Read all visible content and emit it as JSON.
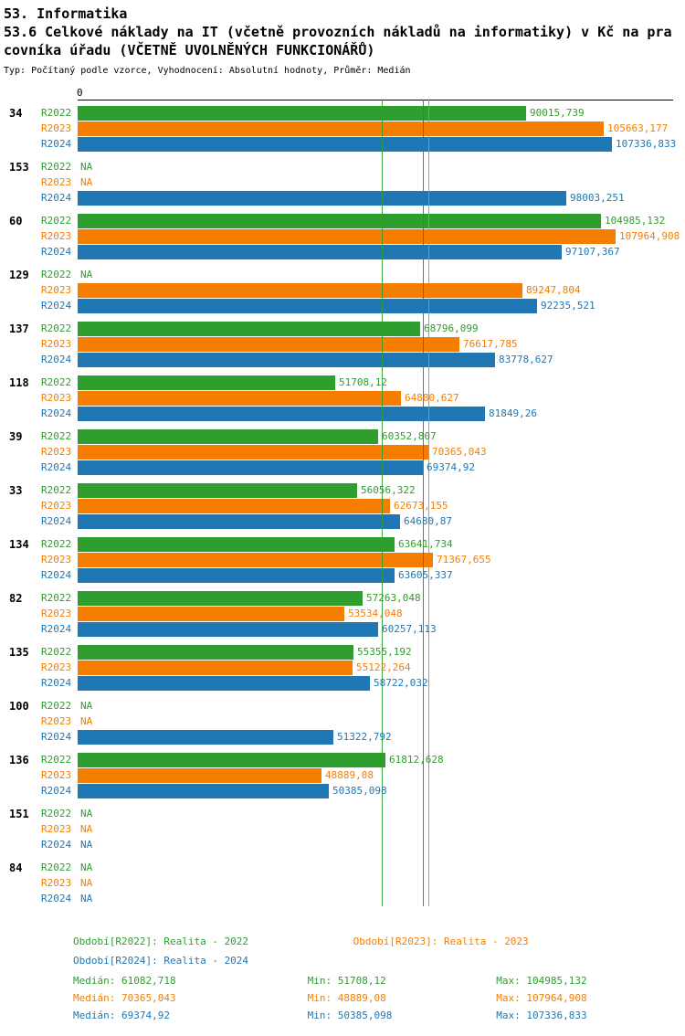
{
  "title": {
    "line1": "53. Informatika",
    "line2": "53.6 Celkové náklady na IT (včetně provozních nákladů na informatiky) v Kč na pra",
    "line3": "covníka úřadu (VČETNĚ UVOLNĚNÝCH FUNKCIONÁŘŮ)",
    "subtitle": "Typ: Počítaný podle vzorce, Vyhodnocení: Absolutní hodnoty, Průměr: Medián"
  },
  "chart_data": {
    "type": "bar",
    "orientation": "horizontal",
    "title": "53.6 Celkové náklady na IT (včetně provozních nákladů na informatiky) v Kč na pracovníka úřadu (VČETNĚ UVOLNĚNÝCH FUNKCIONÁŘŮ)",
    "value_axis": {
      "min": 0,
      "max": 110000,
      "zero_label": "0"
    },
    "grid": false,
    "series_labels": [
      "R2022",
      "R2023",
      "R2024"
    ],
    "series_colors": {
      "R2022": "#2e9e2e",
      "R2023": "#f57e00",
      "R2024": "#1f77b4"
    },
    "na_text": "NA",
    "groups": [
      {
        "id": "34",
        "bars": [
          {
            "series": "R2022",
            "value": 90015.739,
            "display": "90015,739"
          },
          {
            "series": "R2023",
            "value": 105663.177,
            "display": "105663,177"
          },
          {
            "series": "R2024",
            "value": 107336.833,
            "display": "107336,833"
          }
        ]
      },
      {
        "id": "153",
        "bars": [
          {
            "series": "R2022",
            "value": null,
            "display": "NA"
          },
          {
            "series": "R2023",
            "value": null,
            "display": "NA"
          },
          {
            "series": "R2024",
            "value": 98003.251,
            "display": "98003,251"
          }
        ]
      },
      {
        "id": "60",
        "bars": [
          {
            "series": "R2022",
            "value": 104985.132,
            "display": "104985,132"
          },
          {
            "series": "R2023",
            "value": 107964.908,
            "display": "107964,908"
          },
          {
            "series": "R2024",
            "value": 97107.367,
            "display": "97107,367"
          }
        ]
      },
      {
        "id": "129",
        "bars": [
          {
            "series": "R2022",
            "value": null,
            "display": "NA"
          },
          {
            "series": "R2023",
            "value": 89247.804,
            "display": "89247,804"
          },
          {
            "series": "R2024",
            "value": 92235.521,
            "display": "92235,521"
          }
        ]
      },
      {
        "id": "137",
        "bars": [
          {
            "series": "R2022",
            "value": 68796.099,
            "display": "68796,099"
          },
          {
            "series": "R2023",
            "value": 76617.785,
            "display": "76617,785"
          },
          {
            "series": "R2024",
            "value": 83778.627,
            "display": "83778,627"
          }
        ]
      },
      {
        "id": "118",
        "bars": [
          {
            "series": "R2022",
            "value": 51708.12,
            "display": "51708,12"
          },
          {
            "series": "R2023",
            "value": 64880.627,
            "display": "64880,627"
          },
          {
            "series": "R2024",
            "value": 81849.26,
            "display": "81849,26"
          }
        ]
      },
      {
        "id": "39",
        "bars": [
          {
            "series": "R2022",
            "value": 60352.807,
            "display": "60352,807"
          },
          {
            "series": "R2023",
            "value": 70365.043,
            "display": "70365,043"
          },
          {
            "series": "R2024",
            "value": 69374.92,
            "display": "69374,92"
          }
        ]
      },
      {
        "id": "33",
        "bars": [
          {
            "series": "R2022",
            "value": 56056.322,
            "display": "56056,322"
          },
          {
            "series": "R2023",
            "value": 62673.155,
            "display": "62673,155"
          },
          {
            "series": "R2024",
            "value": 64680.87,
            "display": "64680,87"
          }
        ]
      },
      {
        "id": "134",
        "bars": [
          {
            "series": "R2022",
            "value": 63641.734,
            "display": "63641,734"
          },
          {
            "series": "R2023",
            "value": 71367.655,
            "display": "71367,655"
          },
          {
            "series": "R2024",
            "value": 63605.337,
            "display": "63605,337"
          }
        ]
      },
      {
        "id": "82",
        "bars": [
          {
            "series": "R2022",
            "value": 57263.048,
            "display": "57263,048"
          },
          {
            "series": "R2023",
            "value": 53534.048,
            "display": "53534,048"
          },
          {
            "series": "R2024",
            "value": 60257.113,
            "display": "60257,113"
          }
        ]
      },
      {
        "id": "135",
        "bars": [
          {
            "series": "R2022",
            "value": 55355.192,
            "display": "55355,192"
          },
          {
            "series": "R2023",
            "value": 55122.264,
            "display": "55122,264"
          },
          {
            "series": "R2024",
            "value": 58722.032,
            "display": "58722,032"
          }
        ]
      },
      {
        "id": "100",
        "bars": [
          {
            "series": "R2022",
            "value": null,
            "display": "NA"
          },
          {
            "series": "R2023",
            "value": null,
            "display": "NA"
          },
          {
            "series": "R2024",
            "value": 51322.792,
            "display": "51322,792"
          }
        ]
      },
      {
        "id": "136",
        "bars": [
          {
            "series": "R2022",
            "value": 61812.628,
            "display": "61812,628"
          },
          {
            "series": "R2023",
            "value": 48889.08,
            "display": "48889,08"
          },
          {
            "series": "R2024",
            "value": 50385.098,
            "display": "50385,098"
          }
        ]
      },
      {
        "id": "151",
        "bars": [
          {
            "series": "R2022",
            "value": null,
            "display": "NA"
          },
          {
            "series": "R2023",
            "value": null,
            "display": "NA"
          },
          {
            "series": "R2024",
            "value": null,
            "display": "NA"
          }
        ]
      },
      {
        "id": "84",
        "bars": [
          {
            "series": "R2022",
            "value": null,
            "display": "NA"
          },
          {
            "series": "R2023",
            "value": null,
            "display": "NA"
          },
          {
            "series": "R2024",
            "value": null,
            "display": "NA"
          }
        ]
      }
    ],
    "median_lines": [
      {
        "series": "R2022",
        "value": 61082.718
      },
      {
        "series": "R2024",
        "value": 69374.92
      },
      {
        "series": "R2023",
        "value": 70365.043
      }
    ]
  },
  "legend": {
    "r2022": "Období[R2022]: Realita - 2022",
    "r2023": "Období[R2023]: Realita - 2023",
    "r2024": "Období[R2024]: Realita - 2024"
  },
  "stats": {
    "r2022": {
      "median": "Medián: 61082,718",
      "min": "Min: 51708,12",
      "max": "Max: 104985,132"
    },
    "r2023": {
      "median": "Medián: 70365,043",
      "min": "Min: 48889,08",
      "max": "Max: 107964,908"
    },
    "r2024": {
      "median": "Medián: 69374,92",
      "min": "Min: 50385,098",
      "max": "Max: 107336,833"
    }
  }
}
